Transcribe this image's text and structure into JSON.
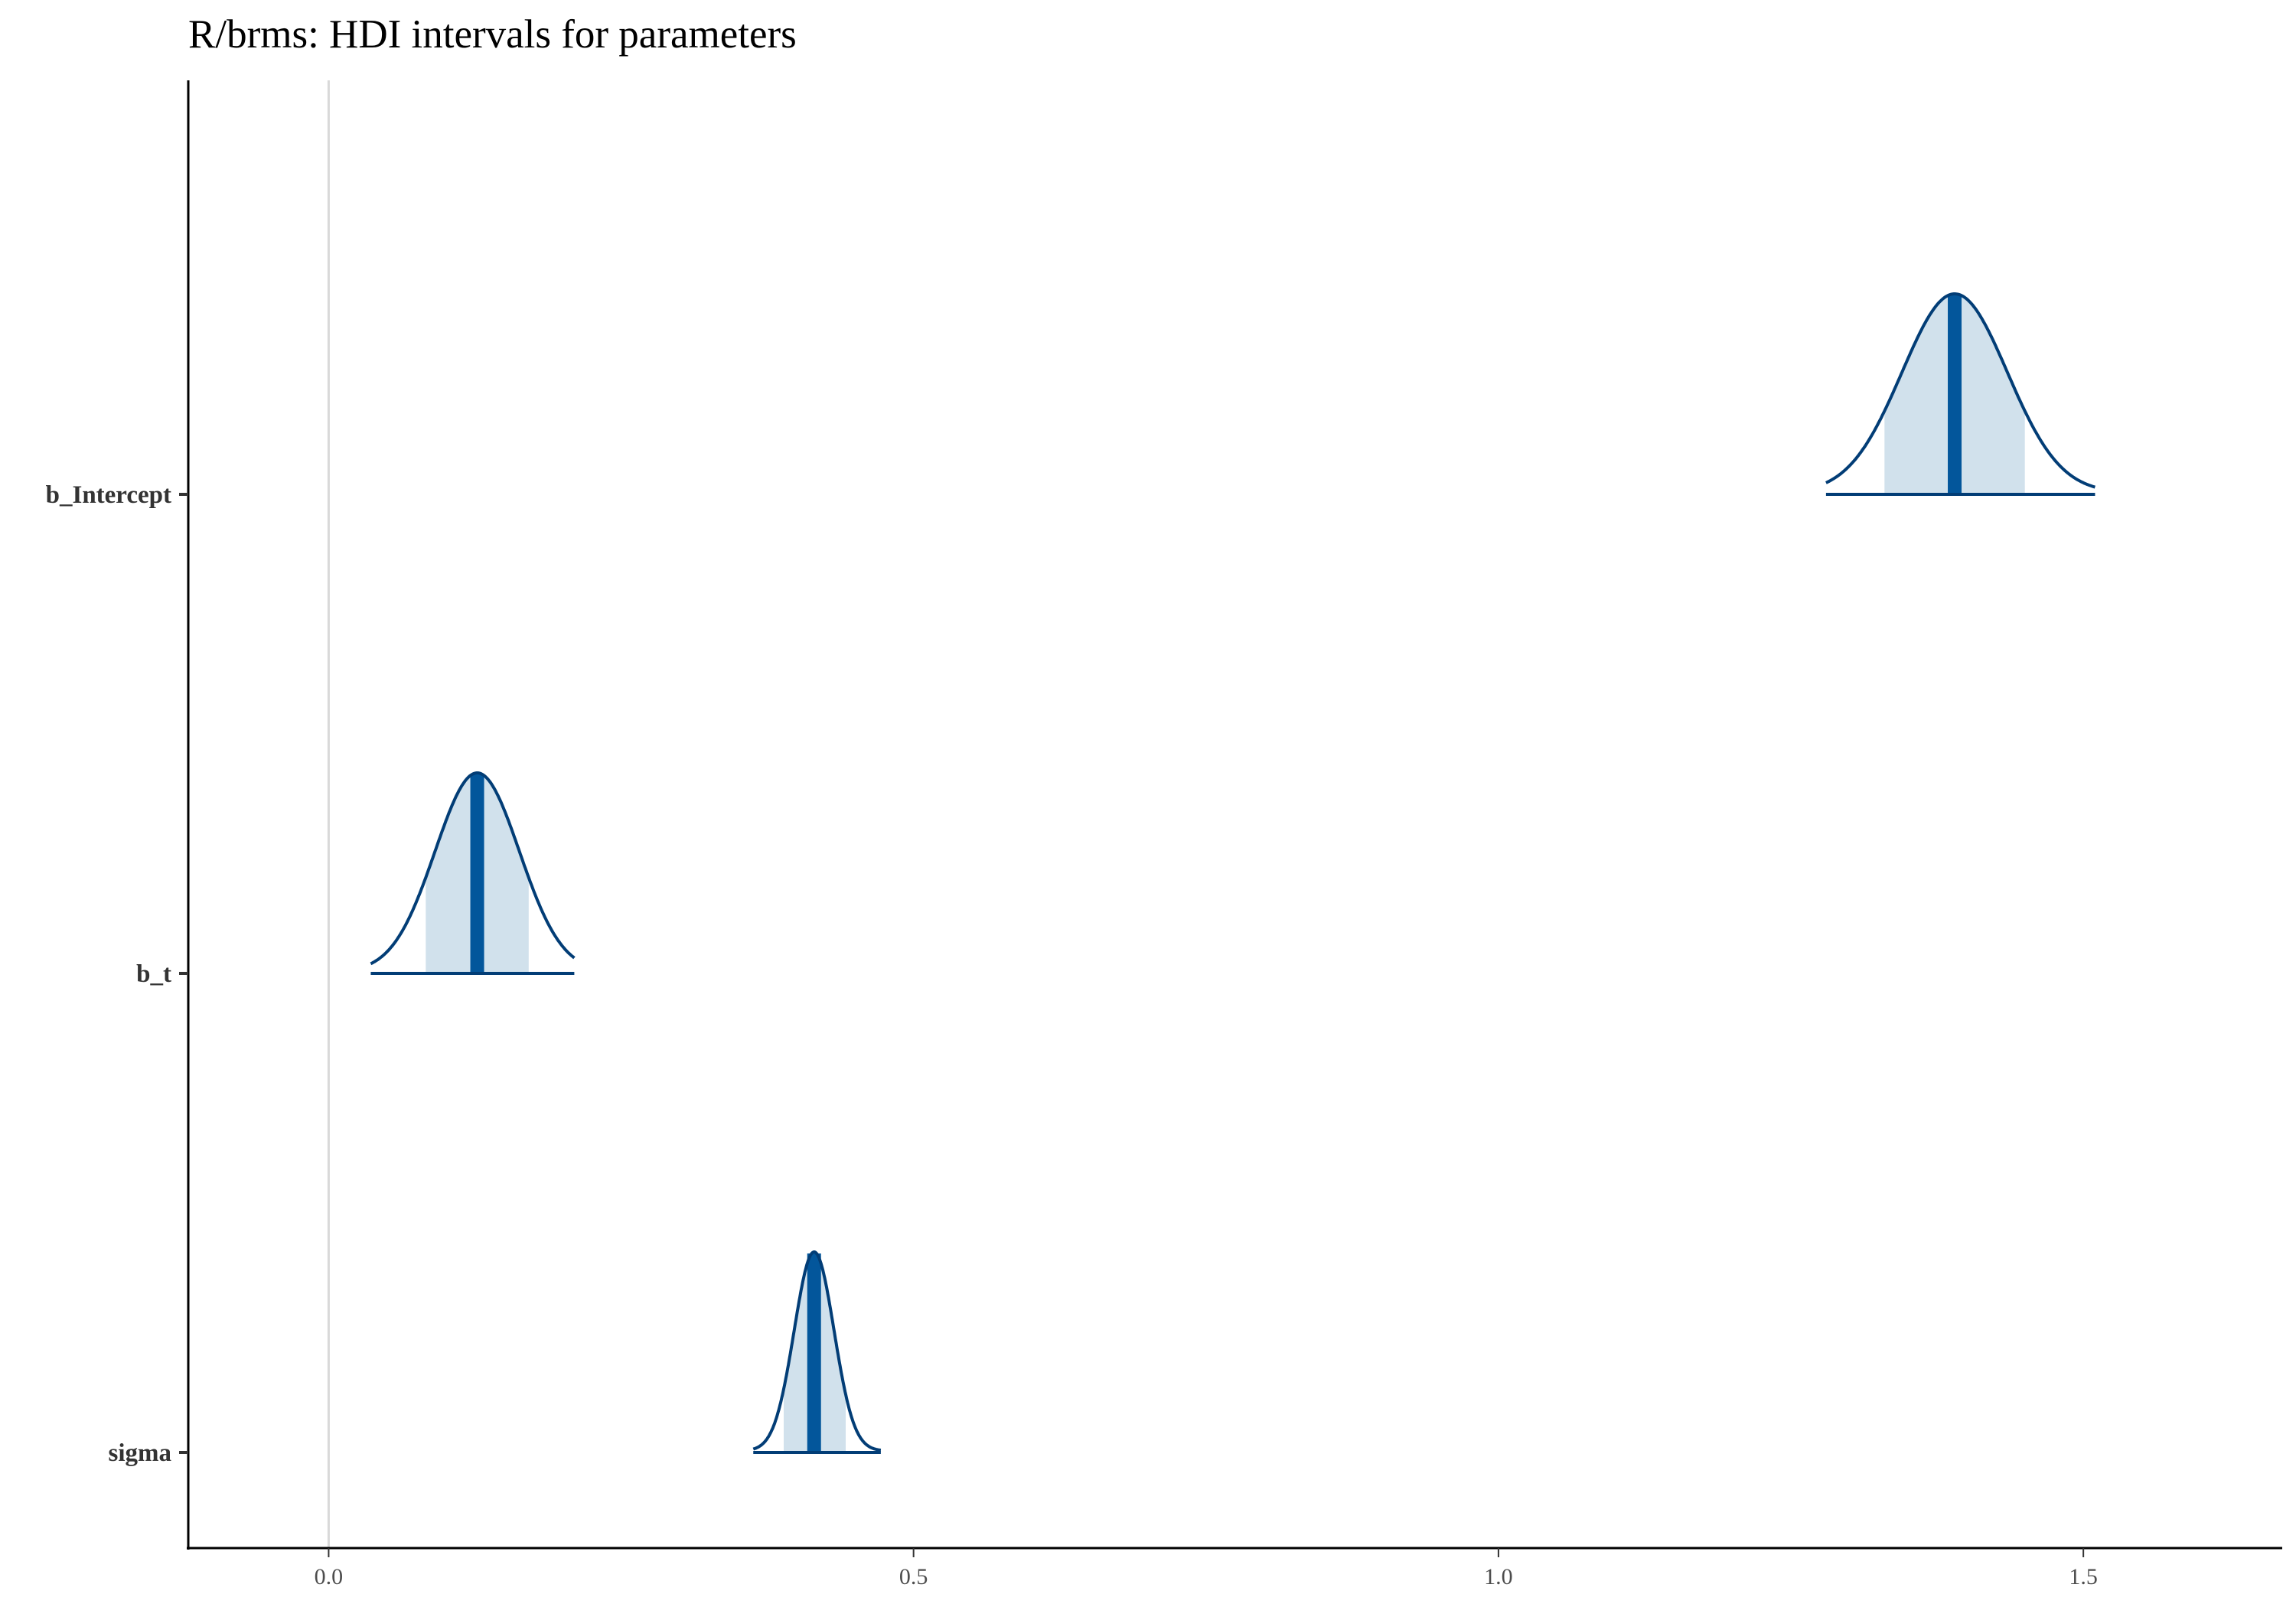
{
  "chart_data": {
    "type": "ridge-interval",
    "title": "R/brms: HDI intervals for parameters",
    "xlabel": "",
    "ylabel": "",
    "xlim": [
      -0.12,
      1.67
    ],
    "x_ticks": [
      "0.0",
      "0.5",
      "1.0",
      "1.5"
    ],
    "x_tick_values": [
      0.0,
      0.5,
      1.0,
      1.5
    ],
    "reference_line": 0,
    "grid": false,
    "parameters": [
      "b_Intercept",
      "b_t",
      "sigma"
    ],
    "series": [
      {
        "name": "b_Intercept",
        "median": 1.39,
        "sd": 0.045,
        "hdi_inner": [
          1.33,
          1.45
        ],
        "range": [
          1.28,
          1.51
        ]
      },
      {
        "name": "b_t",
        "median": 0.127,
        "sd": 0.036,
        "hdi_inner": [
          0.083,
          0.171
        ],
        "range": [
          0.036,
          0.21
        ]
      },
      {
        "name": "sigma",
        "median": 0.415,
        "sd": 0.017,
        "hdi_inner": [
          0.389,
          0.442
        ],
        "range": [
          0.363,
          0.472
        ]
      }
    ],
    "colors": {
      "outline": "#023d76",
      "fill": "#d1e1ec",
      "median": "#03569b",
      "zero_line": "#d9d9d9"
    }
  }
}
